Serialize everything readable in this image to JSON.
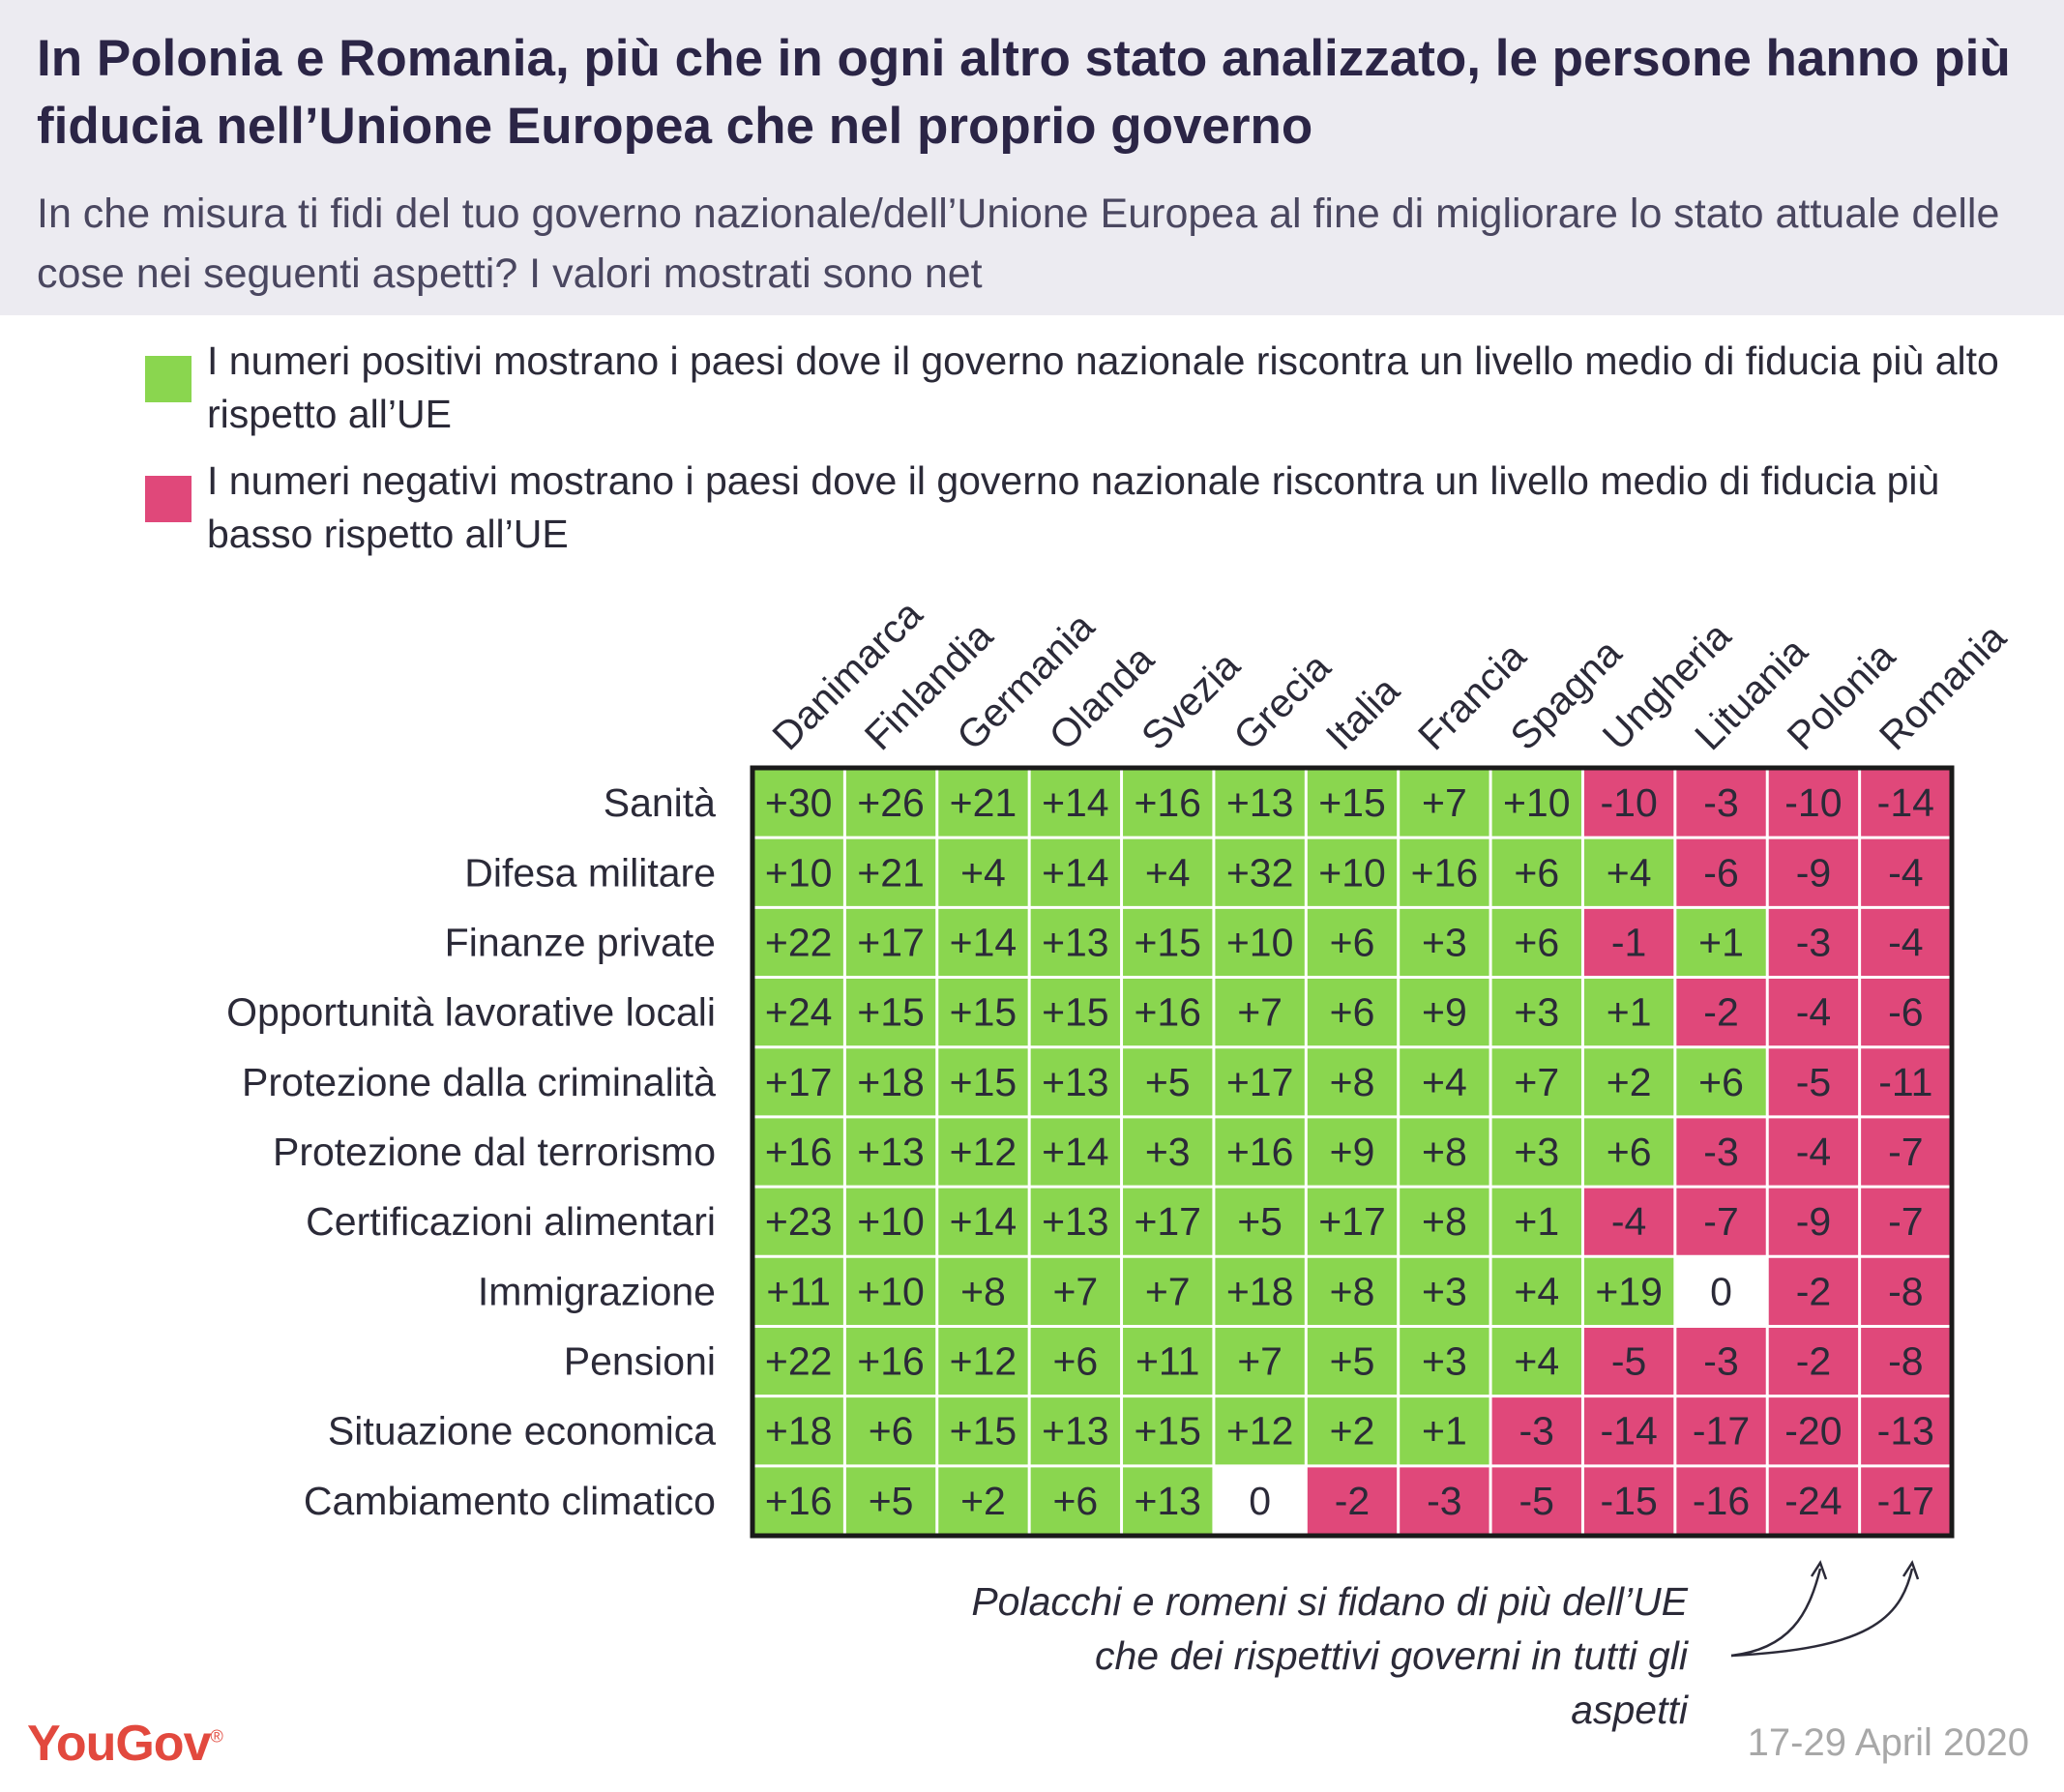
{
  "header": {
    "title": "In Polonia e Romania, più che in ogni altro stato analizzato, le persone hanno più fiducia nell’Unione Europea che nel proprio governo",
    "subtitle": "In che misura ti fidi del tuo governo nazionale/dell’Unione Europea al fine di migliorare lo stato attuale delle cose nei seguenti aspetti? I valori mostrati sono net"
  },
  "legend": {
    "positive": "I numeri positivi mostrano i paesi dove il governo nazionale riscontra un livello medio di fiducia più alto rispetto all’UE",
    "negative": "I numeri negativi mostrano i paesi dove il governo nazionale riscontra un livello medio di fiducia più basso rispetto all’UE"
  },
  "colors": {
    "positive": "#8ad64f",
    "negative": "#e0487a",
    "zero": "#ffffff",
    "brand": "#e2493e"
  },
  "chart_data": {
    "type": "heatmap",
    "columns": [
      "Danimarca",
      "Finlandia",
      "Germania",
      "Olanda",
      "Svezia",
      "Grecia",
      "Italia",
      "Francia",
      "Spagna",
      "Ungheria",
      "Lituania",
      "Polonia",
      "Romania"
    ],
    "rows": [
      "Sanità",
      "Difesa militare",
      "Finanze private",
      "Opportunità lavorative locali",
      "Protezione dalla criminalità",
      "Protezione dal terrorismo",
      "Certificazioni alimentari",
      "Immigrazione",
      "Pensioni",
      "Situazione economica",
      "Cambiamento climatico"
    ],
    "values": [
      [
        30,
        26,
        21,
        14,
        16,
        13,
        15,
        7,
        10,
        -10,
        -3,
        -10,
        -14
      ],
      [
        10,
        21,
        4,
        14,
        4,
        32,
        10,
        16,
        6,
        4,
        -6,
        -9,
        -4
      ],
      [
        22,
        17,
        14,
        13,
        15,
        10,
        6,
        3,
        6,
        -1,
        1,
        -3,
        -4
      ],
      [
        24,
        15,
        15,
        15,
        16,
        7,
        6,
        9,
        3,
        1,
        -2,
        -4,
        -6
      ],
      [
        17,
        18,
        15,
        13,
        5,
        17,
        8,
        4,
        7,
        2,
        6,
        -5,
        -11
      ],
      [
        16,
        13,
        12,
        14,
        3,
        16,
        9,
        8,
        3,
        6,
        -3,
        -4,
        -7
      ],
      [
        23,
        10,
        14,
        13,
        17,
        5,
        17,
        8,
        1,
        -4,
        -7,
        -9,
        -7
      ],
      [
        11,
        10,
        8,
        7,
        7,
        18,
        8,
        3,
        4,
        19,
        0,
        -2,
        -8
      ],
      [
        22,
        16,
        12,
        6,
        11,
        7,
        5,
        3,
        4,
        -5,
        -3,
        -2,
        -8
      ],
      [
        18,
        6,
        15,
        13,
        15,
        12,
        2,
        1,
        -3,
        -14,
        -17,
        -20,
        -13
      ],
      [
        16,
        5,
        2,
        6,
        13,
        0,
        -2,
        -3,
        -5,
        -15,
        -16,
        -24,
        -17
      ]
    ]
  },
  "annotation": "Polacchi e romeni si fidano di più dell’UE che dei rispettivi governi in tutti gli aspetti",
  "footer": {
    "brand": "YouGov",
    "brand_mark": "®",
    "date": "17-29 April 2020"
  }
}
